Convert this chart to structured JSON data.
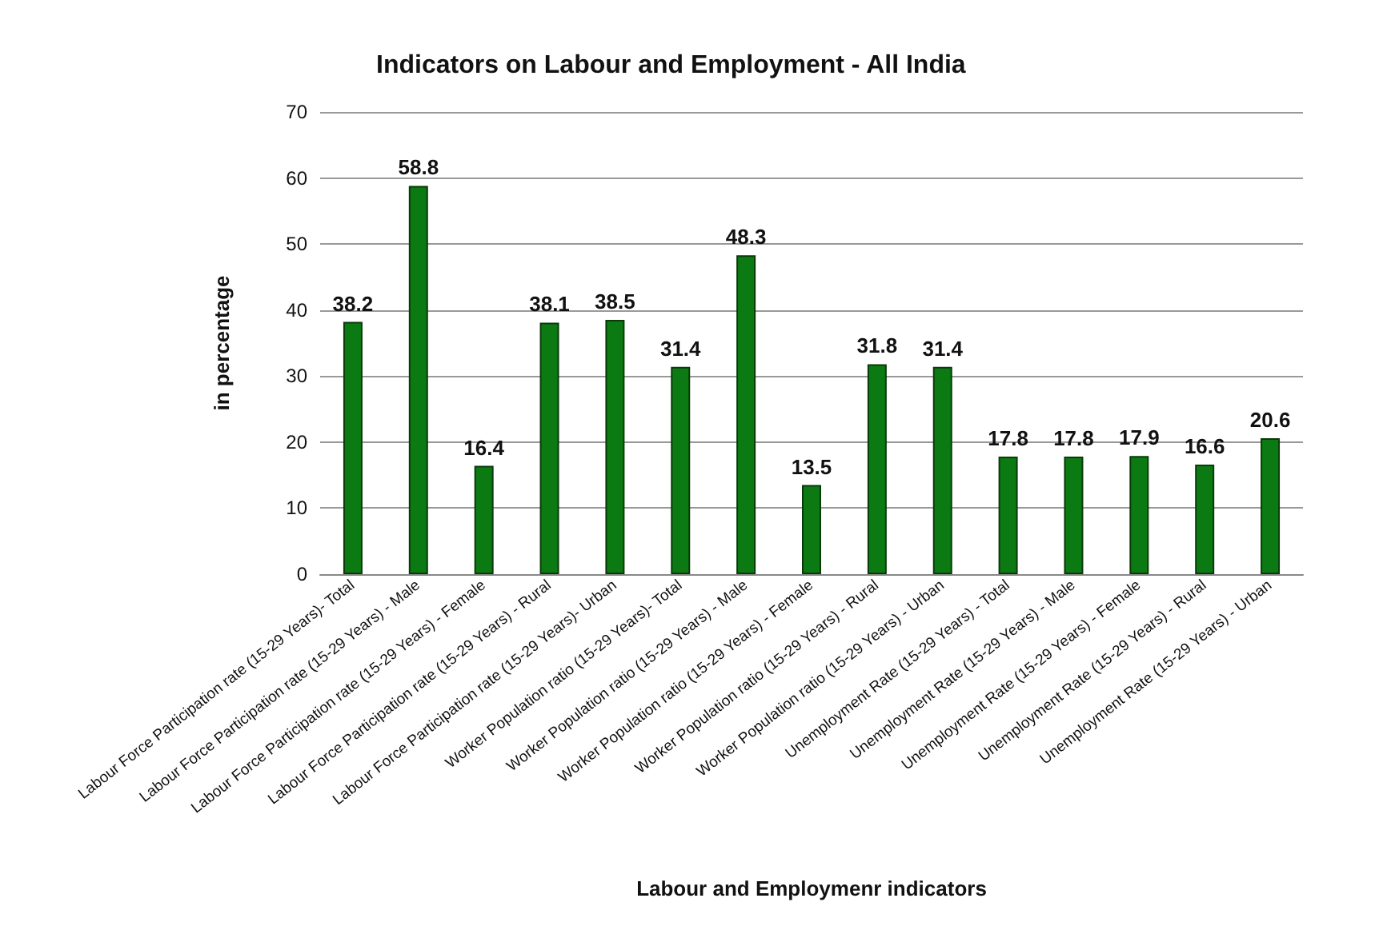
{
  "chart_data": {
    "type": "bar",
    "title": "Indicators on Labour and Employment - All India",
    "xlabel": "Labour and Employmenr indicators",
    "ylabel": "in percentage",
    "categories": [
      "Labour Force Participation rate (15-29 Years)- Total",
      "Labour Force Participation rate (15-29 Years) - Male",
      "Labour Force Participation rate (15-29 Years) - Female",
      "Labour Force Participation rate (15-29 Years) - Rural",
      "Labour Force Participation rate (15-29 Years)- Urban",
      "Worker Population ratio (15-29 Years)- Total",
      "Worker Population ratio (15-29 Years) - Male",
      "Worker Population ratio (15-29 Years) - Female",
      "Worker Population ratio (15-29 Years) - Rural",
      "Worker Population ratio (15-29 Years) - Urban",
      "Unemployment Rate (15-29 Years) - Total",
      "Unemployment Rate (15-29 Years) - Male",
      "Unemployment Rate (15-29 Years) - Female",
      "Unemployment Rate (15-29 Years) - Rural",
      "Unemployment Rate (15-29 Years) - Urban"
    ],
    "values": [
      38.2,
      58.8,
      16.4,
      38.1,
      38.5,
      31.4,
      48.3,
      13.5,
      31.8,
      31.4,
      17.8,
      17.8,
      17.9,
      16.6,
      20.6
    ],
    "color": "#0c7a12",
    "data_labels": true,
    "ylim": [
      0,
      70
    ],
    "yticks": [
      0,
      10,
      20,
      30,
      40,
      50,
      60,
      70
    ],
    "grid": "y"
  }
}
